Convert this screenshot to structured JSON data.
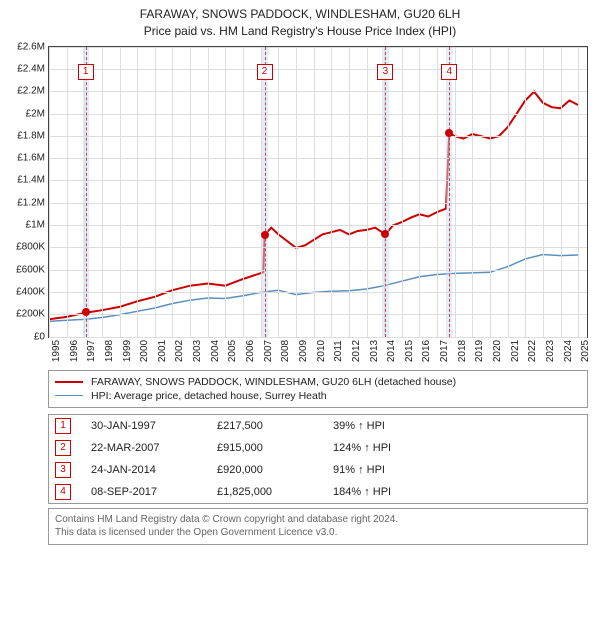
{
  "title": {
    "line1": "FARAWAY, SNOWS PADDOCK, WINDLESHAM, GU20 6LH",
    "line2": "Price paid vs. HM Land Registry's House Price Index (HPI)"
  },
  "chart": {
    "type": "line",
    "background_color": "#ffffff",
    "grid_color": "#dddddd",
    "border_color": "#444444",
    "x": {
      "min": 1995,
      "max": 2025.5,
      "ticks": [
        1995,
        1996,
        1997,
        1998,
        1999,
        2000,
        2001,
        2002,
        2003,
        2004,
        2005,
        2006,
        2007,
        2008,
        2009,
        2010,
        2011,
        2012,
        2013,
        2014,
        2015,
        2016,
        2017,
        2018,
        2019,
        2020,
        2021,
        2022,
        2023,
        2024,
        2025
      ],
      "tick_fontsize": 10
    },
    "y": {
      "min": 0,
      "max": 2600000,
      "ticks": [
        {
          "v": 0,
          "label": "£0"
        },
        {
          "v": 200000,
          "label": "£200K"
        },
        {
          "v": 400000,
          "label": "£400K"
        },
        {
          "v": 600000,
          "label": "£600K"
        },
        {
          "v": 800000,
          "label": "£800K"
        },
        {
          "v": 1000000,
          "label": "£1M"
        },
        {
          "v": 1200000,
          "label": "£1.2M"
        },
        {
          "v": 1400000,
          "label": "£1.4M"
        },
        {
          "v": 1600000,
          "label": "£1.6M"
        },
        {
          "v": 1800000,
          "label": "£1.8M"
        },
        {
          "v": 2000000,
          "label": "£2M"
        },
        {
          "v": 2200000,
          "label": "£2.2M"
        },
        {
          "v": 2400000,
          "label": "£2.4M"
        },
        {
          "v": 2600000,
          "label": "£2.6M"
        }
      ],
      "tick_fontsize": 10
    },
    "marker_band_color": "rgba(200,220,245,0.5)",
    "marker_line_color": "#cc4444",
    "marker_box_border": "#cc0000",
    "marker_box_text": "#cc0000",
    "series": [
      {
        "name": "property",
        "legend": "FARAWAY, SNOWS PADDOCK, WINDLESHAM, GU20 6LH (detached house)",
        "color": "#cc0000",
        "width": 2,
        "points": [
          [
            1995,
            160000
          ],
          [
            1996,
            180000
          ],
          [
            1997.08,
            217500
          ],
          [
            1998,
            240000
          ],
          [
            1999,
            270000
          ],
          [
            2000,
            320000
          ],
          [
            2001,
            360000
          ],
          [
            2002,
            420000
          ],
          [
            2003,
            460000
          ],
          [
            2004,
            480000
          ],
          [
            2005,
            460000
          ],
          [
            2006,
            520000
          ],
          [
            2007.15,
            580000
          ],
          [
            2007.22,
            915000
          ],
          [
            2007.6,
            980000
          ],
          [
            2008,
            920000
          ],
          [
            2009,
            800000
          ],
          [
            2009.5,
            820000
          ],
          [
            2010,
            870000
          ],
          [
            2010.5,
            920000
          ],
          [
            2011,
            940000
          ],
          [
            2011.5,
            960000
          ],
          [
            2012,
            920000
          ],
          [
            2012.5,
            950000
          ],
          [
            2013,
            960000
          ],
          [
            2013.5,
            980000
          ],
          [
            2014.07,
            920000
          ],
          [
            2014.5,
            1000000
          ],
          [
            2015,
            1030000
          ],
          [
            2015.5,
            1070000
          ],
          [
            2016,
            1100000
          ],
          [
            2016.5,
            1080000
          ],
          [
            2017,
            1120000
          ],
          [
            2017.5,
            1150000
          ],
          [
            2017.69,
            1825000
          ],
          [
            2018,
            1800000
          ],
          [
            2018.5,
            1780000
          ],
          [
            2019,
            1820000
          ],
          [
            2019.5,
            1800000
          ],
          [
            2020,
            1780000
          ],
          [
            2020.5,
            1800000
          ],
          [
            2021,
            1880000
          ],
          [
            2021.5,
            2000000
          ],
          [
            2022,
            2120000
          ],
          [
            2022.5,
            2200000
          ],
          [
            2023,
            2100000
          ],
          [
            2023.5,
            2060000
          ],
          [
            2024,
            2050000
          ],
          [
            2024.5,
            2120000
          ],
          [
            2025,
            2080000
          ]
        ]
      },
      {
        "name": "hpi",
        "legend": "HPI: Average price, detached house, Surrey Heath",
        "color": "#5b8fbf",
        "width": 1.5,
        "points": [
          [
            1995,
            140000
          ],
          [
            1996,
            150000
          ],
          [
            1997,
            158000
          ],
          [
            1998,
            175000
          ],
          [
            1999,
            200000
          ],
          [
            2000,
            230000
          ],
          [
            2001,
            260000
          ],
          [
            2002,
            300000
          ],
          [
            2003,
            330000
          ],
          [
            2004,
            350000
          ],
          [
            2005,
            345000
          ],
          [
            2006,
            370000
          ],
          [
            2007,
            400000
          ],
          [
            2008,
            420000
          ],
          [
            2009,
            380000
          ],
          [
            2010,
            400000
          ],
          [
            2011,
            410000
          ],
          [
            2012,
            415000
          ],
          [
            2013,
            430000
          ],
          [
            2014,
            460000
          ],
          [
            2015,
            500000
          ],
          [
            2016,
            540000
          ],
          [
            2017,
            560000
          ],
          [
            2018,
            570000
          ],
          [
            2019,
            575000
          ],
          [
            2020,
            580000
          ],
          [
            2021,
            630000
          ],
          [
            2022,
            700000
          ],
          [
            2023,
            740000
          ],
          [
            2024,
            730000
          ],
          [
            2025,
            735000
          ]
        ]
      }
    ],
    "sale_markers": [
      {
        "idx": "1",
        "x": 1997.08,
        "y": 217500,
        "band": [
          1996.9,
          1997.25
        ]
      },
      {
        "idx": "2",
        "x": 2007.22,
        "y": 915000,
        "band": [
          2007.05,
          2007.4
        ]
      },
      {
        "idx": "3",
        "x": 2014.07,
        "y": 920000,
        "band": [
          2013.9,
          2014.25
        ]
      },
      {
        "idx": "4",
        "x": 2017.69,
        "y": 1825000,
        "band": [
          2017.52,
          2017.87
        ]
      }
    ],
    "marker_box_top_pct": 6
  },
  "legend_title": "",
  "sales_table": {
    "rows": [
      {
        "idx": "1",
        "date": "30-JAN-1997",
        "price": "£217,500",
        "delta": "39% ↑ HPI"
      },
      {
        "idx": "2",
        "date": "22-MAR-2007",
        "price": "£915,000",
        "delta": "124% ↑ HPI"
      },
      {
        "idx": "3",
        "date": "24-JAN-2014",
        "price": "£920,000",
        "delta": "91% ↑ HPI"
      },
      {
        "idx": "4",
        "date": "08-SEP-2017",
        "price": "£1,825,000",
        "delta": "184% ↑ HPI"
      }
    ]
  },
  "footer": {
    "line1": "Contains HM Land Registry data © Crown copyright and database right 2024.",
    "line2": "This data is licensed under the Open Government Licence v3.0."
  }
}
